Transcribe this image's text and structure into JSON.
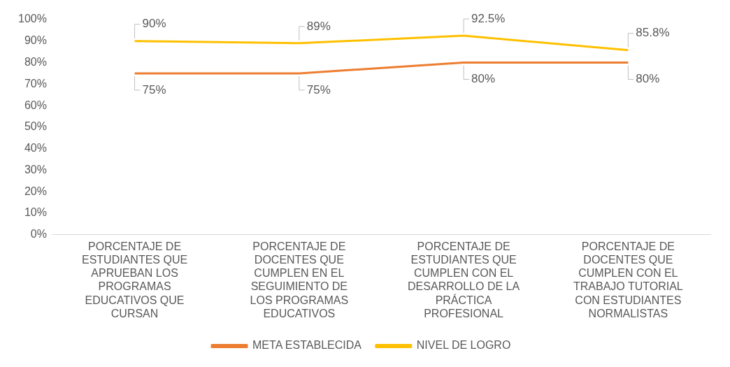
{
  "chart_data": {
    "type": "line",
    "categories": [
      "PORCENTAJE DE ESTUDIANTES QUE APRUEBAN LOS PROGRAMAS EDUCATIVOS QUE CURSAN",
      "PORCENTAJE DE DOCENTES QUE CUMPLEN EN EL SEGUIMIENTO DE LOS PROGRAMAS EDUCATIVOS",
      "PORCENTAJE DE ESTUDIANTES QUE CUMPLEN CON EL DESARROLLO DE LA PRÁCTICA PROFESIONAL",
      "PORCENTAJE DE DOCENTES QUE CUMPLEN CON EL TRABAJO TUTORIAL CON ESTUDIANTES NORMALISTAS"
    ],
    "series": [
      {
        "name": "META ESTABLECIDA",
        "color": "#ed7d31",
        "values": [
          75,
          75,
          80,
          80
        ],
        "value_labels": [
          "75%",
          "75%",
          "80%",
          "80%"
        ]
      },
      {
        "name": "NIVEL DE LOGRO",
        "color": "#ffc000",
        "values": [
          90,
          89,
          92.5,
          85.8
        ],
        "value_labels": [
          "90%",
          "89%",
          "92.5%",
          "85.8%"
        ]
      }
    ],
    "ylim": [
      0,
      100
    ],
    "yticks": [
      {
        "value": 0,
        "label": "0%"
      },
      {
        "value": 10,
        "label": "10%"
      },
      {
        "value": 20,
        "label": "20%"
      },
      {
        "value": 30,
        "label": "30%"
      },
      {
        "value": 40,
        "label": "40%"
      },
      {
        "value": 50,
        "label": "50%"
      },
      {
        "value": 60,
        "label": "60%"
      },
      {
        "value": 70,
        "label": "70%"
      },
      {
        "value": 80,
        "label": "80%"
      },
      {
        "value": 90,
        "label": "90%"
      },
      {
        "value": 100,
        "label": "100%"
      }
    ],
    "grid": false,
    "legend": "bottom",
    "marker": "none",
    "line_style": "solid"
  }
}
